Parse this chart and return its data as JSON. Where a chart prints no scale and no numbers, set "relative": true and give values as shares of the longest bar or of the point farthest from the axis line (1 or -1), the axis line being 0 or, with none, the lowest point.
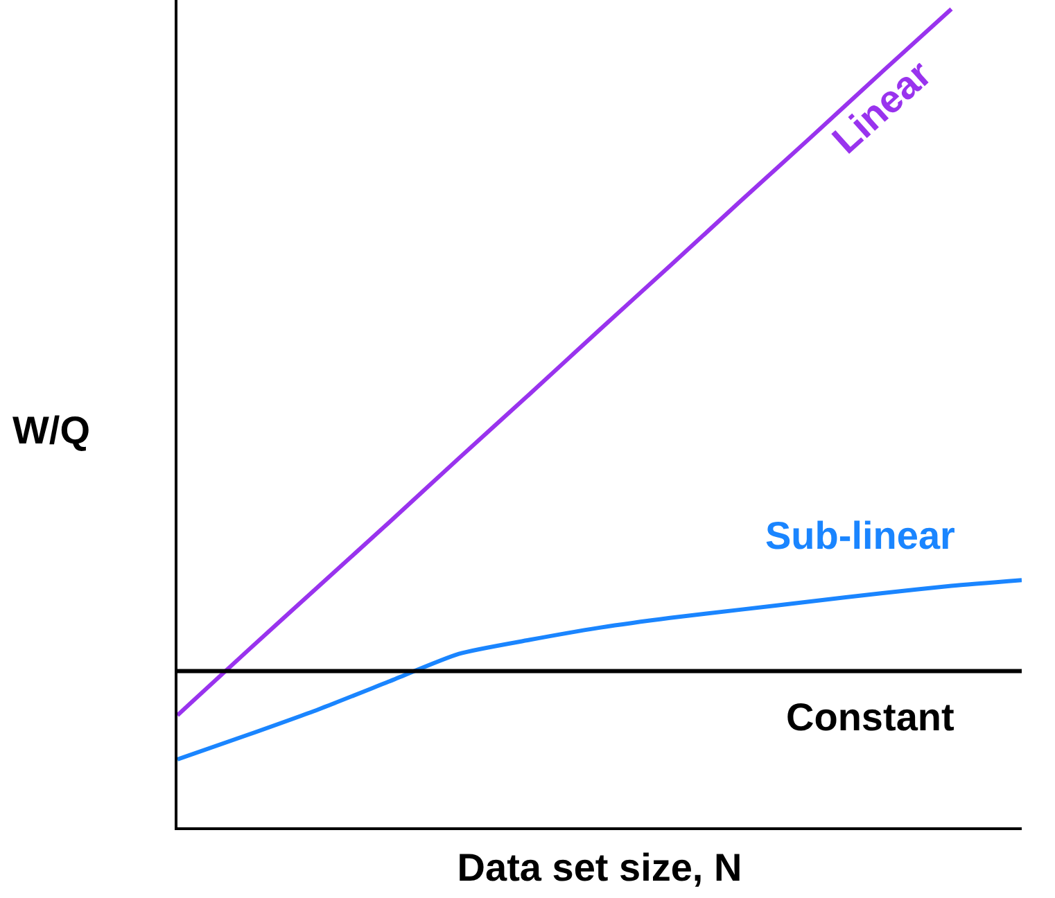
{
  "chart_data": {
    "type": "line",
    "xlabel": "Data set size, N",
    "ylabel": "W/Q",
    "relative": true,
    "categories": [
      null,
      null,
      null,
      null,
      null,
      null,
      null,
      null,
      null,
      null,
      null,
      null,
      null
    ],
    "series": [
      {
        "name": "Linear",
        "color": "#9933ee",
        "values": [
          0.137,
          0.216,
          0.294,
          0.372,
          0.451,
          0.529,
          0.608,
          0.686,
          0.765,
          0.843,
          0.922,
          1,
          null
        ]
      },
      {
        "name": "Sub-linear",
        "color": "#1a85ff",
        "values": [
          0.083,
          0.113,
          0.144,
          0.178,
          0.212,
          0.229,
          0.244,
          0.256,
          0.266,
          0.276,
          0.286,
          0.295,
          0.302
        ]
      },
      {
        "name": "Constant",
        "color": "#000000",
        "values": [
          0.191,
          0.191,
          0.191,
          0.191,
          0.191,
          0.191,
          0.191,
          0.191,
          0.191,
          0.191,
          0.191,
          0.191,
          0.191
        ]
      }
    ]
  }
}
